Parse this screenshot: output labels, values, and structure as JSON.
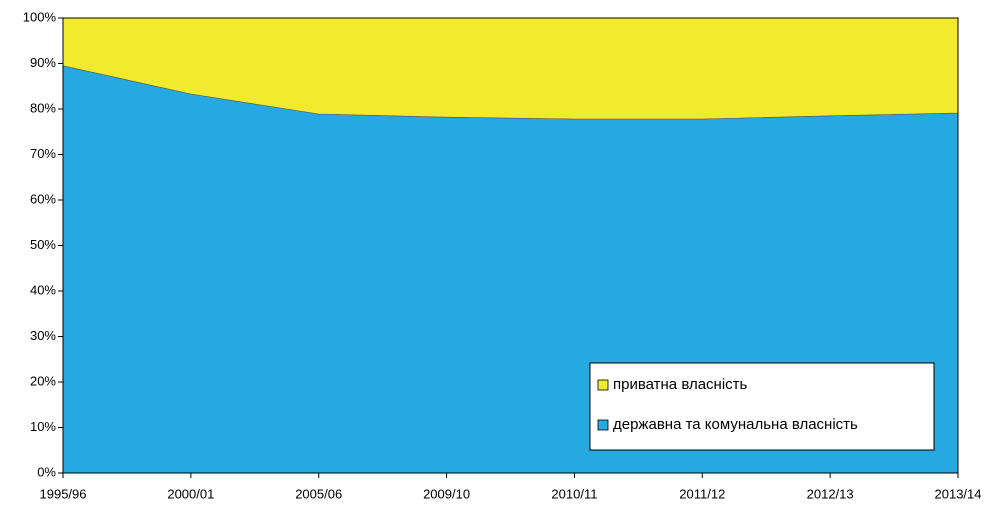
{
  "chart_data": {
    "type": "area",
    "stacked": true,
    "categories": [
      "1995/96",
      "2000/01",
      "2005/06",
      "2009/10",
      "2010/11",
      "2011/12",
      "2012/13",
      "2013/14"
    ],
    "series": [
      {
        "name": "державна та комунальна власність",
        "color": "#25a9e0",
        "values": [
          89.5,
          83.3,
          78.9,
          78.2,
          77.8,
          77.8,
          78.5,
          79.1
        ]
      },
      {
        "name": "приватна власність",
        "color": "#f2ea2c",
        "values": [
          10.5,
          16.7,
          21.1,
          21.8,
          22.2,
          22.2,
          21.5,
          20.9
        ]
      }
    ],
    "ylim": [
      0,
      100
    ],
    "yticks": [
      {
        "value": 0,
        "label": "0%"
      },
      {
        "value": 10,
        "label": "10%"
      },
      {
        "value": 20,
        "label": "20%"
      },
      {
        "value": 30,
        "label": "30%"
      },
      {
        "value": 40,
        "label": "40%"
      },
      {
        "value": 50,
        "label": "50%"
      },
      {
        "value": 60,
        "label": "60%"
      },
      {
        "value": 70,
        "label": "70%"
      },
      {
        "value": 80,
        "label": "80%"
      },
      {
        "value": 90,
        "label": "90%"
      },
      {
        "value": 100,
        "label": "100%"
      }
    ],
    "legend": "lower right"
  }
}
